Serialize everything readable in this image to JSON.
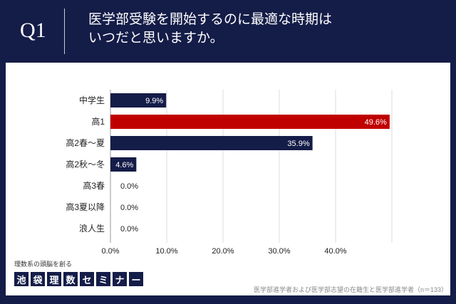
{
  "header": {
    "q": "Q1",
    "title_line1": "医学部受験を開始するのに最適な時期は",
    "title_line2": "いつだと思いますか。"
  },
  "footer": {
    "tagline": "理数系の頭脳を創る",
    "logo_chars": [
      "池",
      "袋",
      "理",
      "数",
      "セ",
      "ミ",
      "ナ",
      "ー"
    ],
    "note": "医学部進学者および医学部志望の在籍生と医学部進学者（n＝133）"
  },
  "colors": {
    "background": "#141c48",
    "bar": "#141c48",
    "highlight": "#c00000"
  },
  "chart_data": {
    "type": "bar",
    "orientation": "horizontal",
    "categories": [
      "中学生",
      "高1",
      "高2春〜夏",
      "高2秋〜冬",
      "高3春",
      "高3夏以降",
      "浪人生"
    ],
    "values": [
      9.9,
      49.6,
      35.9,
      4.6,
      0.0,
      0.0,
      0.0
    ],
    "data_labels": [
      "9.9%",
      "49.6%",
      "35.9%",
      "4.6%",
      "0.0%",
      "0.0%",
      "0.0%"
    ],
    "highlight_index": 1,
    "xlim": [
      0,
      50
    ],
    "x_ticks": [
      "0.0%",
      "10.0%",
      "20.0%",
      "30.0%",
      "40.0%"
    ],
    "grid": true
  }
}
